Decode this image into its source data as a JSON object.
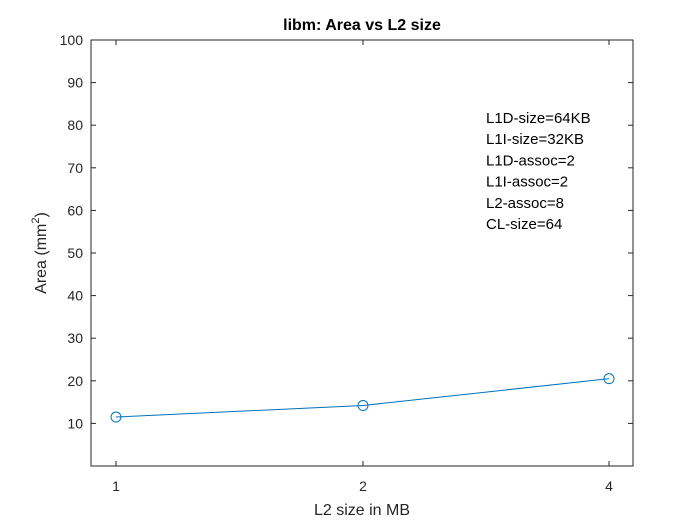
{
  "chart_data": {
    "type": "line",
    "title": "libm: Area vs L2 size",
    "xlabel": "L2 size in MB",
    "ylabel_base": "Area (mm",
    "ylabel_sup": "2",
    "ylabel_end": ")",
    "categories": [
      "1",
      "2",
      "4"
    ],
    "series": [
      {
        "values": [
          11.5,
          14.2,
          20.5
        ],
        "color": "#0072BD",
        "marker": "circle"
      }
    ],
    "ylim": [
      0,
      100
    ],
    "yticks": [
      10,
      20,
      30,
      40,
      50,
      60,
      70,
      80,
      90,
      100
    ],
    "grid": false,
    "annotations": [
      "L1D-size=64KB",
      "L1I-size=32KB",
      "L1D-assoc=2",
      "L1I-assoc=2",
      "L2-assoc=8",
      "CL-size=64"
    ]
  }
}
